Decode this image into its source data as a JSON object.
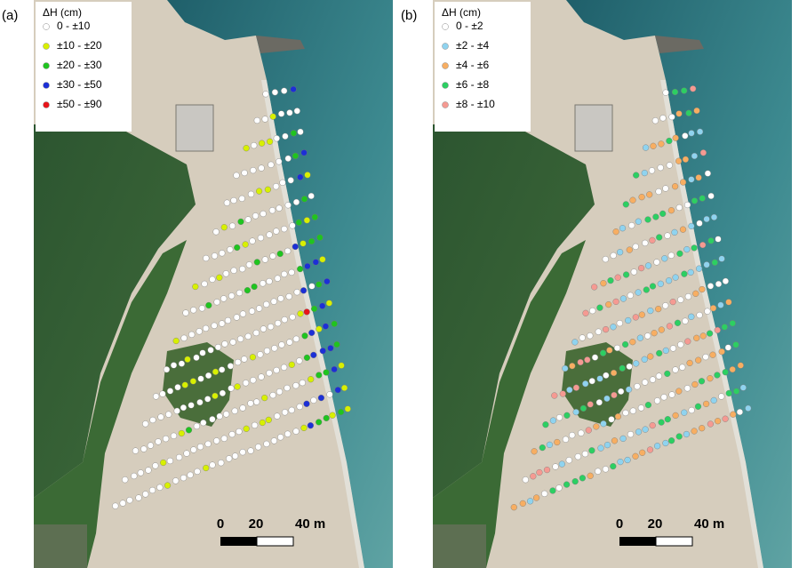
{
  "panels": [
    {
      "label": "(a)",
      "legend_title": "ΔH (cm)",
      "legend": [
        {
          "label": "0 - ±10",
          "color": "#ffffff"
        },
        {
          "label": "±10 - ±20",
          "color": "#d8f000"
        },
        {
          "label": "±20 - ±30",
          "color": "#1fc41f"
        },
        {
          "label": "±30 - ±50",
          "color": "#1c2fd6"
        },
        {
          "label": "±50 - ±90",
          "color": "#e8141a"
        }
      ],
      "scale": [
        "0",
        "20",
        "40 m"
      ]
    },
    {
      "label": "(b)",
      "legend_title": "ΔH (cm)",
      "legend": [
        {
          "label": "0 - ±2",
          "color": "#ffffff"
        },
        {
          "label": "±2 - ±4",
          "color": "#8fd3ef"
        },
        {
          "label": "±4 - ±6",
          "color": "#f7ae62"
        },
        {
          "label": "±6 - ±8",
          "color": "#2ccf62"
        },
        {
          "label": "±8 - ±10",
          "color": "#f59a92"
        }
      ],
      "scale": [
        "0",
        "20",
        "40 m"
      ]
    }
  ]
}
